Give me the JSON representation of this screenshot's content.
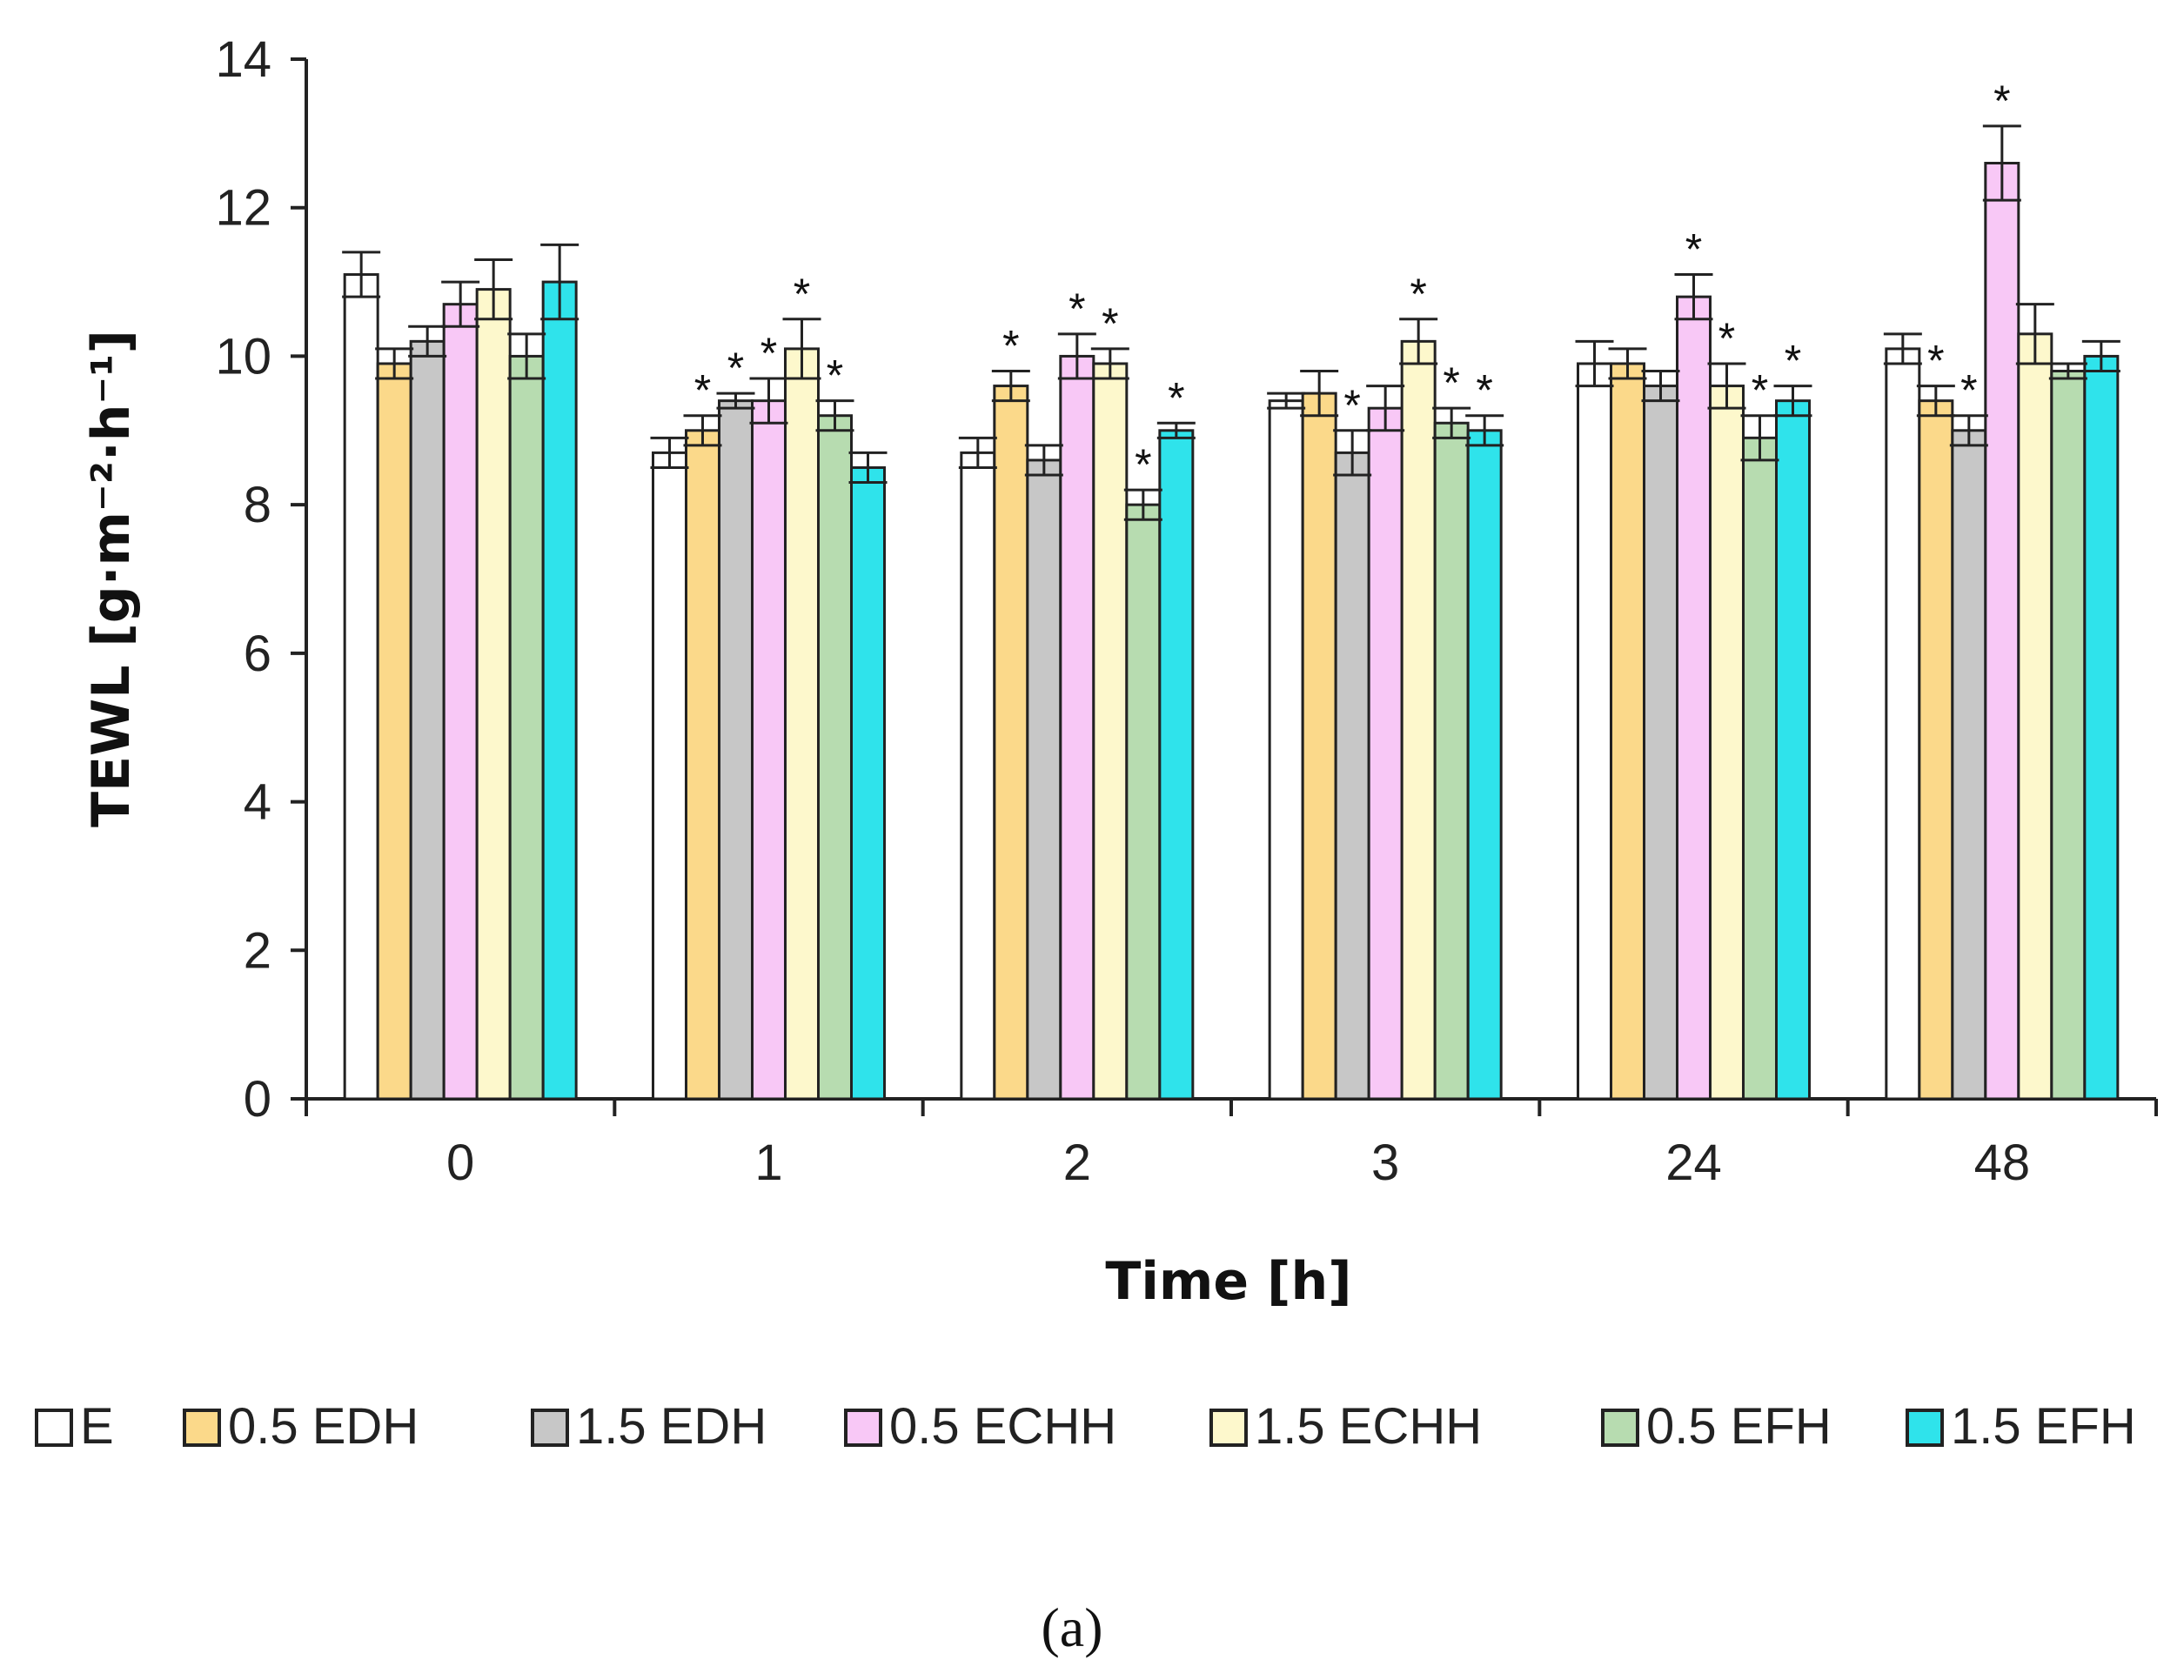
{
  "chart_data": {
    "type": "bar",
    "title": "",
    "xlabel": "Time [h]",
    "ylabel": "TEWL [g·m⁻²·h⁻¹]",
    "ylim": [
      0,
      14
    ],
    "yticks": [
      0,
      2,
      4,
      6,
      8,
      10,
      12,
      14
    ],
    "categories": [
      "0",
      "1",
      "2",
      "3",
      "24",
      "48"
    ],
    "legend_position": "bottom",
    "error_bars": true,
    "series": [
      {
        "name": "E",
        "color": "#ffffff",
        "values": [
          11.1,
          8.7,
          8.7,
          9.4,
          9.9,
          10.1
        ],
        "errors": [
          0.3,
          0.2,
          0.2,
          0.1,
          0.3,
          0.2
        ],
        "significant": [
          false,
          false,
          false,
          false,
          false,
          false
        ]
      },
      {
        "name": "0.5 EDH",
        "color": "#fbd98a",
        "values": [
          9.9,
          9.0,
          9.6,
          9.5,
          9.9,
          9.4
        ],
        "errors": [
          0.2,
          0.2,
          0.2,
          0.3,
          0.2,
          0.2
        ],
        "significant": [
          false,
          true,
          true,
          false,
          false,
          true
        ]
      },
      {
        "name": "1.5 EDH",
        "color": "#c7c7c7",
        "values": [
          10.2,
          9.4,
          8.6,
          8.7,
          9.6,
          9.0
        ],
        "errors": [
          0.2,
          0.1,
          0.2,
          0.3,
          0.2,
          0.2
        ],
        "significant": [
          false,
          true,
          false,
          true,
          false,
          true
        ]
      },
      {
        "name": "0.5 ECHH",
        "color": "#f8c8f6",
        "values": [
          10.7,
          9.4,
          10.0,
          9.3,
          10.8,
          12.6
        ],
        "errors": [
          0.3,
          0.3,
          0.3,
          0.3,
          0.3,
          0.5
        ],
        "significant": [
          false,
          true,
          true,
          false,
          true,
          true
        ]
      },
      {
        "name": "1.5 ECHH",
        "color": "#fdf8cc",
        "values": [
          10.9,
          10.1,
          9.9,
          10.2,
          9.6,
          10.3
        ],
        "errors": [
          0.4,
          0.4,
          0.2,
          0.3,
          0.3,
          0.4
        ],
        "significant": [
          false,
          true,
          true,
          true,
          true,
          false
        ]
      },
      {
        "name": "0.5 EFH",
        "color": "#b7dcb0",
        "values": [
          10.0,
          9.2,
          8.0,
          9.1,
          8.9,
          9.8
        ],
        "errors": [
          0.3,
          0.2,
          0.2,
          0.2,
          0.3,
          0.1
        ],
        "significant": [
          false,
          true,
          true,
          true,
          true,
          false
        ]
      },
      {
        "name": "1.5 EFH",
        "color": "#2fe3eb",
        "values": [
          11.0,
          8.5,
          9.0,
          9.0,
          9.4,
          10.0
        ],
        "errors": [
          0.5,
          0.2,
          0.1,
          0.2,
          0.2,
          0.2
        ],
        "significant": [
          false,
          false,
          true,
          true,
          true,
          false
        ]
      }
    ],
    "significance_marker": "*",
    "caption": "(a)"
  }
}
